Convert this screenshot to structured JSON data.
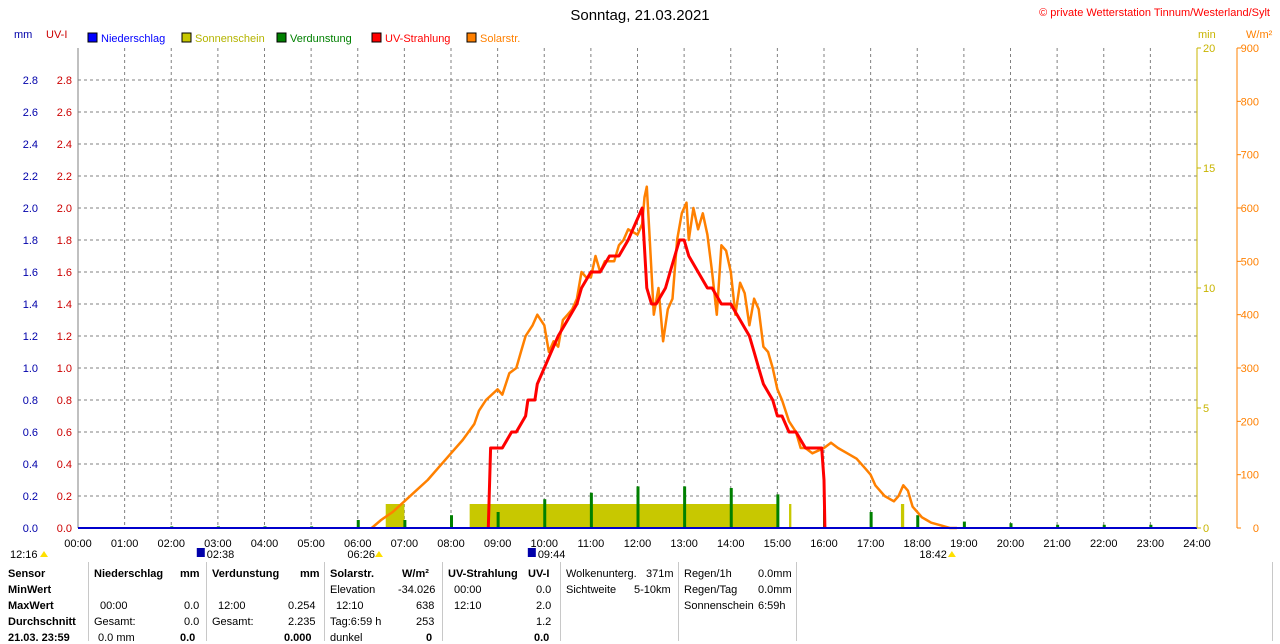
{
  "header": {
    "title": "Sonntag, 21.03.2021",
    "copyright": "© private Wetterstation Tinnum/Westerland/Sylt"
  },
  "axes": {
    "left_unit_mm": "mm",
    "left_unit_uvi": "UV-I",
    "right_unit_min": "min",
    "right_unit_wm2": "W/m²"
  },
  "legend": [
    {
      "label": "Niederschlag",
      "color": "#0000ff"
    },
    {
      "label": "Sonnenschein",
      "color": "#c8c800"
    },
    {
      "label": "Verdunstung",
      "color": "#008000"
    },
    {
      "label": "UV-Strahlung",
      "color": "#ff0000"
    },
    {
      "label": "Solarstr.",
      "color": "#ff8000"
    }
  ],
  "markers": {
    "moonset": "02:38",
    "sunrise": "06:26",
    "moonrise": "09:44",
    "sunset": "18:42",
    "left_time": "12:16"
  },
  "chart_data": {
    "type": "line",
    "title": "Sonntag, 21.03.2021",
    "x_ticks": [
      "00:00",
      "01:00",
      "02:00",
      "03:00",
      "04:00",
      "05:00",
      "06:00",
      "07:00",
      "08:00",
      "09:00",
      "10:00",
      "11:00",
      "12:00",
      "13:00",
      "14:00",
      "15:00",
      "16:00",
      "17:00",
      "18:00",
      "19:00",
      "20:00",
      "21:00",
      "22:00",
      "23:00",
      "24:00"
    ],
    "xlim": [
      0,
      24
    ],
    "y_left_mm_ticks": [
      "0.0",
      "0.2",
      "0.4",
      "0.6",
      "0.8",
      "1.0",
      "1.2",
      "1.4",
      "1.6",
      "1.8",
      "2.0",
      "2.2",
      "2.4",
      "2.6",
      "2.8"
    ],
    "y_left_uvi_ticks": [
      "0.0",
      "0.2",
      "0.4",
      "0.6",
      "0.8",
      "1.0",
      "1.2",
      "1.4",
      "1.6",
      "1.8",
      "2.0",
      "2.2",
      "2.4",
      "2.6",
      "2.8"
    ],
    "ylim_left": [
      0,
      3.0
    ],
    "y_right_min_ticks": [
      "0",
      "5",
      "10",
      "15",
      "20"
    ],
    "ylim_right_min": [
      0,
      20
    ],
    "y_right_wm2_ticks": [
      "0",
      "100",
      "200",
      "300",
      "400",
      "500",
      "600",
      "700",
      "800",
      "900"
    ],
    "ylim_right_wm2": [
      0,
      900
    ],
    "grid": true,
    "legend_position": "top",
    "series": [
      {
        "name": "Solarstr.",
        "unit": "W/m²",
        "x": [
          6.3,
          6.5,
          6.75,
          7.0,
          7.25,
          7.5,
          7.75,
          8.0,
          8.25,
          8.5,
          8.6,
          8.75,
          9.0,
          9.1,
          9.25,
          9.4,
          9.5,
          9.6,
          9.75,
          9.85,
          10.0,
          10.1,
          10.2,
          10.3,
          10.4,
          10.5,
          10.6,
          10.7,
          10.8,
          10.9,
          11.0,
          11.1,
          11.2,
          11.3,
          11.5,
          11.6,
          11.7,
          11.8,
          12.0,
          12.1,
          12.15,
          12.2,
          12.25,
          12.35,
          12.45,
          12.55,
          12.65,
          12.75,
          12.85,
          12.95,
          13.0,
          13.05,
          13.1,
          13.2,
          13.3,
          13.4,
          13.5,
          13.6,
          13.7,
          13.8,
          13.9,
          14.0,
          14.1,
          14.2,
          14.3,
          14.4,
          14.5,
          14.6,
          14.7,
          14.8,
          14.9,
          15.0,
          15.1,
          15.25,
          15.4,
          15.5,
          15.6,
          15.75,
          16.0,
          16.15,
          16.3,
          16.5,
          16.7,
          16.9,
          17.0,
          17.1,
          17.3,
          17.5,
          17.6,
          17.7,
          17.8,
          17.9,
          18.0,
          18.1,
          18.2,
          18.3,
          18.5,
          18.7,
          18.85
        ],
        "y": [
          0,
          15,
          30,
          50,
          70,
          90,
          115,
          140,
          165,
          195,
          220,
          240,
          260,
          250,
          290,
          300,
          330,
          360,
          380,
          400,
          380,
          330,
          350,
          340,
          390,
          400,
          410,
          430,
          480,
          470,
          470,
          510,
          480,
          500,
          500,
          530,
          540,
          560,
          550,
          570,
          620,
          640,
          560,
          400,
          450,
          350,
          410,
          430,
          540,
          590,
          600,
          610,
          540,
          600,
          560,
          590,
          550,
          480,
          400,
          530,
          520,
          480,
          400,
          460,
          440,
          380,
          430,
          410,
          340,
          330,
          300,
          260,
          240,
          200,
          180,
          150,
          150,
          140,
          150,
          160,
          150,
          140,
          130,
          110,
          100,
          80,
          60,
          50,
          60,
          80,
          70,
          40,
          30,
          20,
          15,
          10,
          5,
          0,
          0
        ]
      },
      {
        "name": "UV-Strahlung",
        "unit": "UV-I",
        "x": [
          8.8,
          8.85,
          9.1,
          9.3,
          9.4,
          9.6,
          9.65,
          9.8,
          9.85,
          10.0,
          10.15,
          10.3,
          10.5,
          10.7,
          10.8,
          11.0,
          11.2,
          11.4,
          11.6,
          11.8,
          11.95,
          12.1,
          12.2,
          12.3,
          12.4,
          12.6,
          12.7,
          12.8,
          12.9,
          13.0,
          13.1,
          13.3,
          13.5,
          13.6,
          13.8,
          14.0,
          14.2,
          14.4,
          14.5,
          14.6,
          14.7,
          14.9,
          15.0,
          15.1,
          15.25,
          15.4,
          15.6,
          15.8,
          15.95,
          16.0,
          16.02
        ],
        "y": [
          0,
          0.5,
          0.5,
          0.6,
          0.6,
          0.7,
          0.8,
          0.8,
          0.9,
          1.0,
          1.1,
          1.2,
          1.3,
          1.4,
          1.5,
          1.6,
          1.6,
          1.7,
          1.7,
          1.8,
          1.9,
          2.0,
          1.5,
          1.4,
          1.4,
          1.5,
          1.6,
          1.7,
          1.8,
          1.8,
          1.7,
          1.6,
          1.5,
          1.5,
          1.4,
          1.4,
          1.3,
          1.2,
          1.1,
          1.0,
          0.9,
          0.8,
          0.7,
          0.7,
          0.6,
          0.6,
          0.5,
          0.5,
          0.5,
          0.3,
          0
        ]
      }
    ],
    "sunshine_blocks_min": [
      {
        "start": 6.6,
        "end": 7.0,
        "minutes": 1.0
      },
      {
        "start": 8.4,
        "end": 15.0,
        "minutes": 1.0
      },
      {
        "start": 15.25,
        "end": 15.3,
        "minutes": 1.0
      },
      {
        "start": 17.65,
        "end": 17.72,
        "minutes": 1.0
      }
    ],
    "evaporation_bars_mm": [
      {
        "x": 2.0,
        "v": 0.01
      },
      {
        "x": 3.0,
        "v": 0.01
      },
      {
        "x": 4.0,
        "v": 0.01
      },
      {
        "x": 5.0,
        "v": 0.01
      },
      {
        "x": 6.0,
        "v": 0.05
      },
      {
        "x": 7.0,
        "v": 0.05
      },
      {
        "x": 8.0,
        "v": 0.08
      },
      {
        "x": 9.0,
        "v": 0.1
      },
      {
        "x": 10.0,
        "v": 0.18
      },
      {
        "x": 11.0,
        "v": 0.22
      },
      {
        "x": 12.0,
        "v": 0.26
      },
      {
        "x": 13.0,
        "v": 0.26
      },
      {
        "x": 14.0,
        "v": 0.25
      },
      {
        "x": 15.0,
        "v": 0.21
      },
      {
        "x": 16.0,
        "v": 0.12
      },
      {
        "x": 17.0,
        "v": 0.1
      },
      {
        "x": 18.0,
        "v": 0.08
      },
      {
        "x": 19.0,
        "v": 0.04
      },
      {
        "x": 20.0,
        "v": 0.03
      },
      {
        "x": 21.0,
        "v": 0.02
      },
      {
        "x": 22.0,
        "v": 0.02
      },
      {
        "x": 23.0,
        "v": 0.02
      }
    ]
  },
  "stats": {
    "row_labels": [
      "Sensor",
      "MinWert",
      "MaxWert",
      "Durchschnitt",
      "21.03. 23:59"
    ],
    "niederschlag": {
      "header": "Niederschlag",
      "unit": "mm",
      "max_time": "00:00",
      "max_val": "0.0",
      "gesamt_label": "Gesamt:",
      "gesamt_val": "0.0",
      "last_val": "0.0 mm",
      "last_bold": "0.0"
    },
    "verdunstung": {
      "header": "Verdunstung",
      "unit": "mm",
      "max_time": "12:00",
      "max_val": "0.254",
      "gesamt_label": "Gesamt:",
      "gesamt_val": "2.235",
      "last_bold": "0.000"
    },
    "solar": {
      "header": "Solarstr.",
      "unit": "W/m²",
      "elev_label": "Elevation",
      "elev_val": "-34.026",
      "max_time": "12:10",
      "max_val": "638",
      "tag_label": "Tag:6:59 h",
      "tag_val": "253",
      "dunkel_label": "dunkel",
      "dunkel_val": "0"
    },
    "uv": {
      "header": "UV-Strahlung",
      "unit": "UV-I",
      "min_time": "00:00",
      "min_val": "0.0",
      "max_time": "12:10",
      "max_val": "2.0",
      "avg_val": "1.2",
      "last_val": "0.0"
    },
    "cloud": {
      "wolken_label": "Wolkenunterg.",
      "wolken_val": "371m",
      "sicht_label": "Sichtweite",
      "sicht_val": "5-10km"
    },
    "rain": {
      "r1_label": "Regen/1h",
      "r1_val": "0.0mm",
      "rt_label": "Regen/Tag",
      "rt_val": "0.0mm",
      "sun_label": "Sonnenschein",
      "sun_val": "6:59h"
    }
  }
}
